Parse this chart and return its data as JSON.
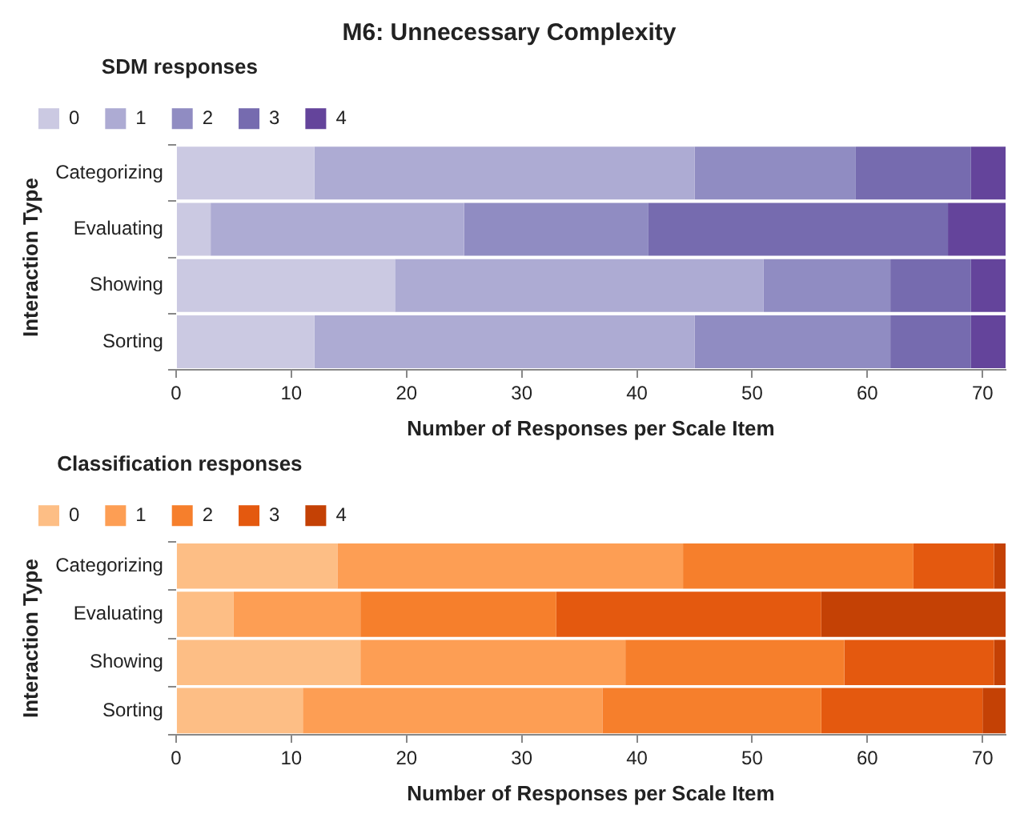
{
  "chart_data": [
    {
      "type": "bar",
      "orientation": "horizontal",
      "stacked": true,
      "title": "M6: Unnecessary Complexity",
      "legend_title": "SDM responses",
      "legend": "top left",
      "xlabel": "Number of Responses per Scale Item",
      "ylabel": "Interaction Type",
      "categories": [
        "Categorizing",
        "Evaluating",
        "Showing",
        "Sorting"
      ],
      "xlim": [
        0,
        72
      ],
      "xticks": [
        0,
        10,
        20,
        30,
        40,
        50,
        60,
        70
      ],
      "grid": false,
      "series": [
        {
          "name": "0",
          "color": "#cbc9e2",
          "values": [
            12,
            3,
            19,
            12
          ]
        },
        {
          "name": "1",
          "color": "#adabd3",
          "values": [
            33,
            22,
            32,
            33
          ]
        },
        {
          "name": "2",
          "color": "#908cc2",
          "values": [
            14,
            16,
            11,
            17
          ]
        },
        {
          "name": "3",
          "color": "#766baf",
          "values": [
            10,
            26,
            7,
            7
          ]
        },
        {
          "name": "4",
          "color": "#64449b",
          "values": [
            3,
            5,
            3,
            3
          ]
        }
      ]
    },
    {
      "type": "bar",
      "orientation": "horizontal",
      "stacked": true,
      "legend_title": "Classification responses",
      "legend": "top left",
      "xlabel": "Number of Responses per Scale Item",
      "ylabel": "Interaction Type",
      "categories": [
        "Categorizing",
        "Evaluating",
        "Showing",
        "Sorting"
      ],
      "xlim": [
        0,
        72
      ],
      "xticks": [
        0,
        10,
        20,
        30,
        40,
        50,
        60,
        70
      ],
      "grid": false,
      "series": [
        {
          "name": "0",
          "color": "#fdbe85",
          "values": [
            14,
            5,
            16,
            11
          ]
        },
        {
          "name": "1",
          "color": "#fd9e54",
          "values": [
            30,
            11,
            23,
            26
          ]
        },
        {
          "name": "2",
          "color": "#f67f2c",
          "values": [
            20,
            17,
            19,
            19
          ]
        },
        {
          "name": "3",
          "color": "#e4590f",
          "values": [
            7,
            23,
            13,
            14
          ]
        },
        {
          "name": "4",
          "color": "#c44105",
          "values": [
            1,
            16,
            1,
            2
          ]
        }
      ]
    }
  ]
}
